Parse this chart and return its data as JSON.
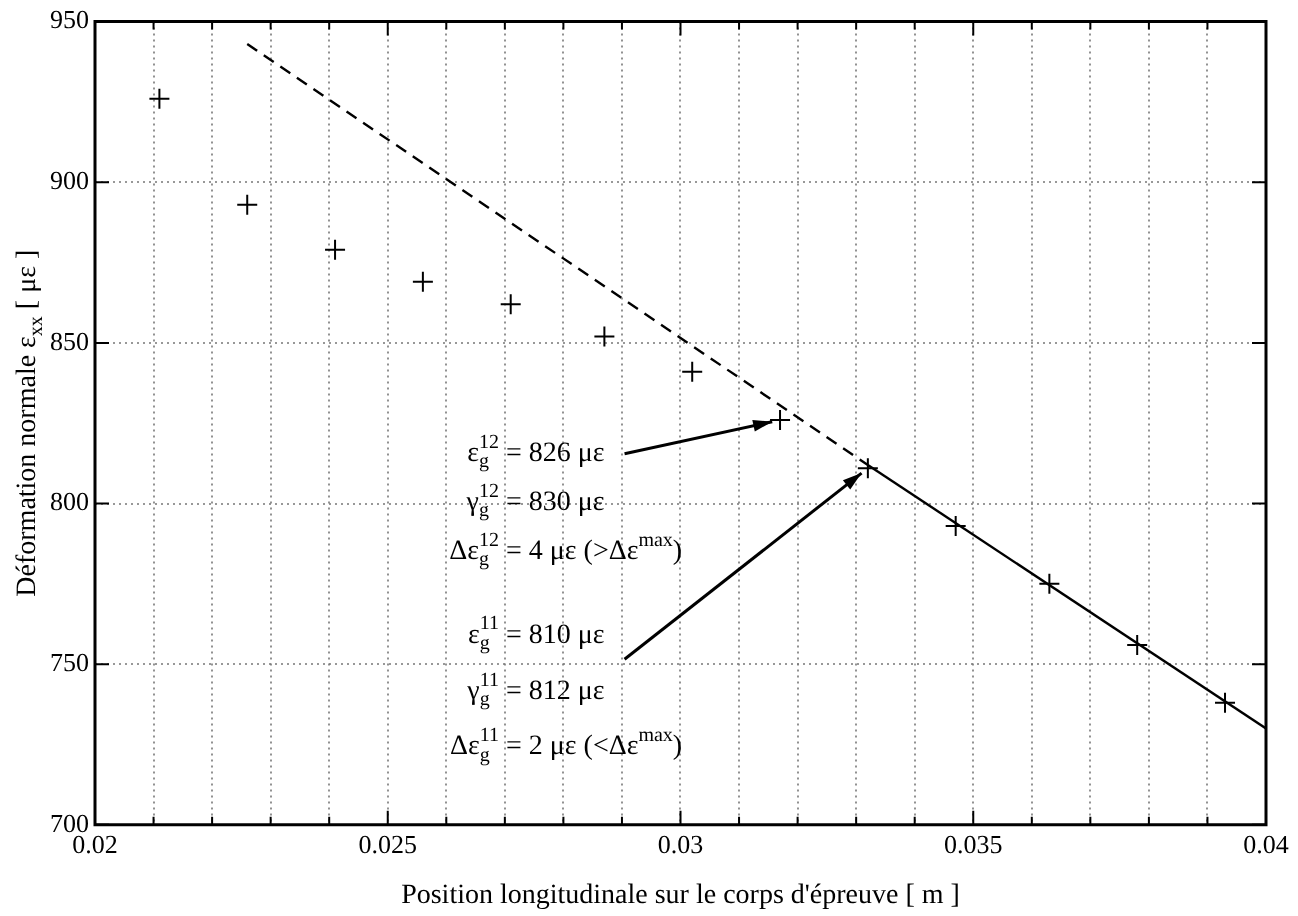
{
  "chart_data": {
    "type": "scatter",
    "xlabel": "Position longitudinale sur le corps d'épreuve [ m ]",
    "ylabel": "Déformation normale ε$_{xx}$ [ με ]",
    "series": [
      {
        "color": "#000000",
        "marker": "cross",
        "x": [
          0.0211,
          0.0226,
          0.0241,
          0.0256,
          0.0271,
          0.0287,
          0.0302,
          0.0317,
          0.0332,
          0.0347,
          0.0363,
          0.0378,
          0.0393
        ],
        "values": [
          926,
          893,
          879,
          869,
          862,
          852,
          841,
          826,
          811,
          793,
          775,
          756,
          738
        ]
      },
      {
        "type": "line",
        "color": "#000000",
        "line_style": "dashed",
        "marker": "none",
        "x": [
          0.0226,
          0.0332
        ],
        "values": [
          943,
          812
        ]
      },
      {
        "type": "line",
        "color": "#000000",
        "line_style": "solid",
        "marker": "none",
        "x": [
          0.0332,
          0.04
        ],
        "values": [
          812,
          730
        ]
      }
    ],
    "xlim": [
      0.02,
      0.04
    ],
    "xticks": [
      0.02,
      {
        "value": 0.021,
        "label": null
      },
      {
        "value": 0.022,
        "label": null
      },
      {
        "value": 0.023,
        "label": null
      },
      {
        "value": 0.024,
        "label": null
      },
      0.025,
      {
        "value": 0.026,
        "label": null
      },
      {
        "value": 0.027,
        "label": null
      },
      {
        "value": 0.028,
        "label": null
      },
      {
        "value": 0.029,
        "label": null
      },
      0.03,
      {
        "value": 0.031,
        "label": null
      },
      {
        "value": 0.032,
        "label": null
      },
      {
        "value": 0.033,
        "label": null
      },
      {
        "value": 0.034,
        "label": null
      },
      0.035,
      {
        "value": 0.036,
        "label": null
      },
      {
        "value": 0.037,
        "label": null
      },
      {
        "value": 0.038,
        "label": null
      },
      {
        "value": 0.039,
        "label": null
      },
      0.04
    ],
    "ylim": [
      700,
      950
    ],
    "yticks": [
      700,
      750,
      800,
      850,
      900,
      950
    ],
    "grid": true,
    "legend": false,
    "annotations": [
      {
        "text": "ε$_{g}$$^{12}$ = 826 με",
        "x": 0.0317,
        "y": 826
      },
      "γ$_{g}$$^{12}$ = 830 με",
      "Δε$_{g}$$^{12}$ = 4 με (>Δε$^{max}$)",
      {
        "text": "ε$_{g}$$^{11}$ = 810 με",
        "x": 0.0332,
        "y": 811
      },
      "γ$_{g}$$^{11}$ = 812 με",
      "Δε$_{g}$$^{11}$ = 2 με (<Δε$^{max}$)"
    ]
  }
}
